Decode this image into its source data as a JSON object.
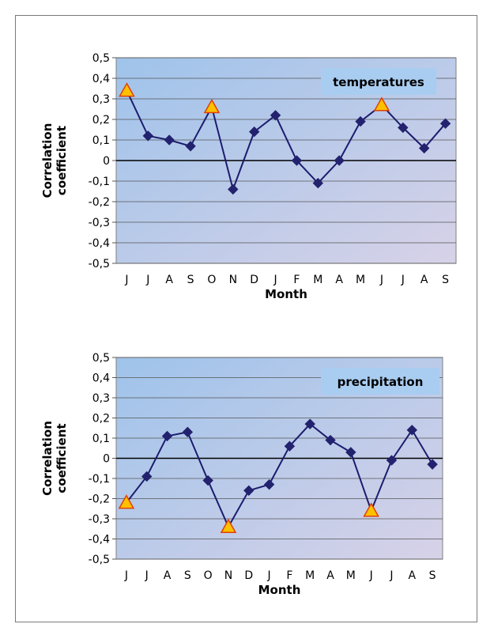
{
  "chart_data": [
    {
      "type": "line",
      "series_label": "temperatures",
      "xlabel": "Month",
      "ylabel_lines": [
        "Correlation",
        "coefficient"
      ],
      "ylim": [
        -0.5,
        0.5
      ],
      "ytick_labels": [
        "0,5",
        "0,4",
        "0,3",
        "0,2",
        "0,1",
        "0",
        "-0,1",
        "-0,2",
        "-0,3",
        "-0,4",
        "-0,5"
      ],
      "categories": [
        "J",
        "J",
        "A",
        "S",
        "O",
        "N",
        "D",
        "J",
        "F",
        "M",
        "A",
        "M",
        "J",
        "J",
        "A",
        "S"
      ],
      "values": [
        0.34,
        0.12,
        0.1,
        0.07,
        0.26,
        -0.14,
        0.14,
        0.22,
        0.0,
        -0.11,
        0.0,
        0.19,
        0.27,
        0.16,
        0.06,
        0.18
      ],
      "highlighted_indices": [
        0,
        4,
        12
      ],
      "colors": {
        "line": "#1c1c6e",
        "marker": "#22226e",
        "highlight_fill": "#ffc000",
        "highlight_stroke": "#e04000",
        "zero_line": "#000000"
      }
    },
    {
      "type": "line",
      "series_label": "precipitation",
      "xlabel": "Month",
      "ylabel_lines": [
        "Correlation",
        "coefficient"
      ],
      "ylim": [
        -0.5,
        0.5
      ],
      "ytick_labels": [
        "0,5",
        "0,4",
        "0,3",
        "0,2",
        "0,1",
        "0",
        "-0,1",
        "-0,2",
        "-0,3",
        "-0,4",
        "-0,5"
      ],
      "categories": [
        "J",
        "J",
        "A",
        "S",
        "O",
        "N",
        "D",
        "J",
        "F",
        "M",
        "A",
        "M",
        "J",
        "J",
        "A",
        "S"
      ],
      "values": [
        -0.22,
        -0.09,
        0.11,
        0.13,
        -0.11,
        -0.34,
        -0.16,
        -0.13,
        0.06,
        0.17,
        0.09,
        0.03,
        -0.26,
        -0.01,
        0.14,
        -0.03
      ],
      "highlighted_indices": [
        0,
        5,
        12
      ],
      "colors": {
        "line": "#1c1c6e",
        "marker": "#22226e",
        "highlight_fill": "#ffc000",
        "highlight_stroke": "#e04000",
        "zero_line": "#000000"
      }
    }
  ]
}
